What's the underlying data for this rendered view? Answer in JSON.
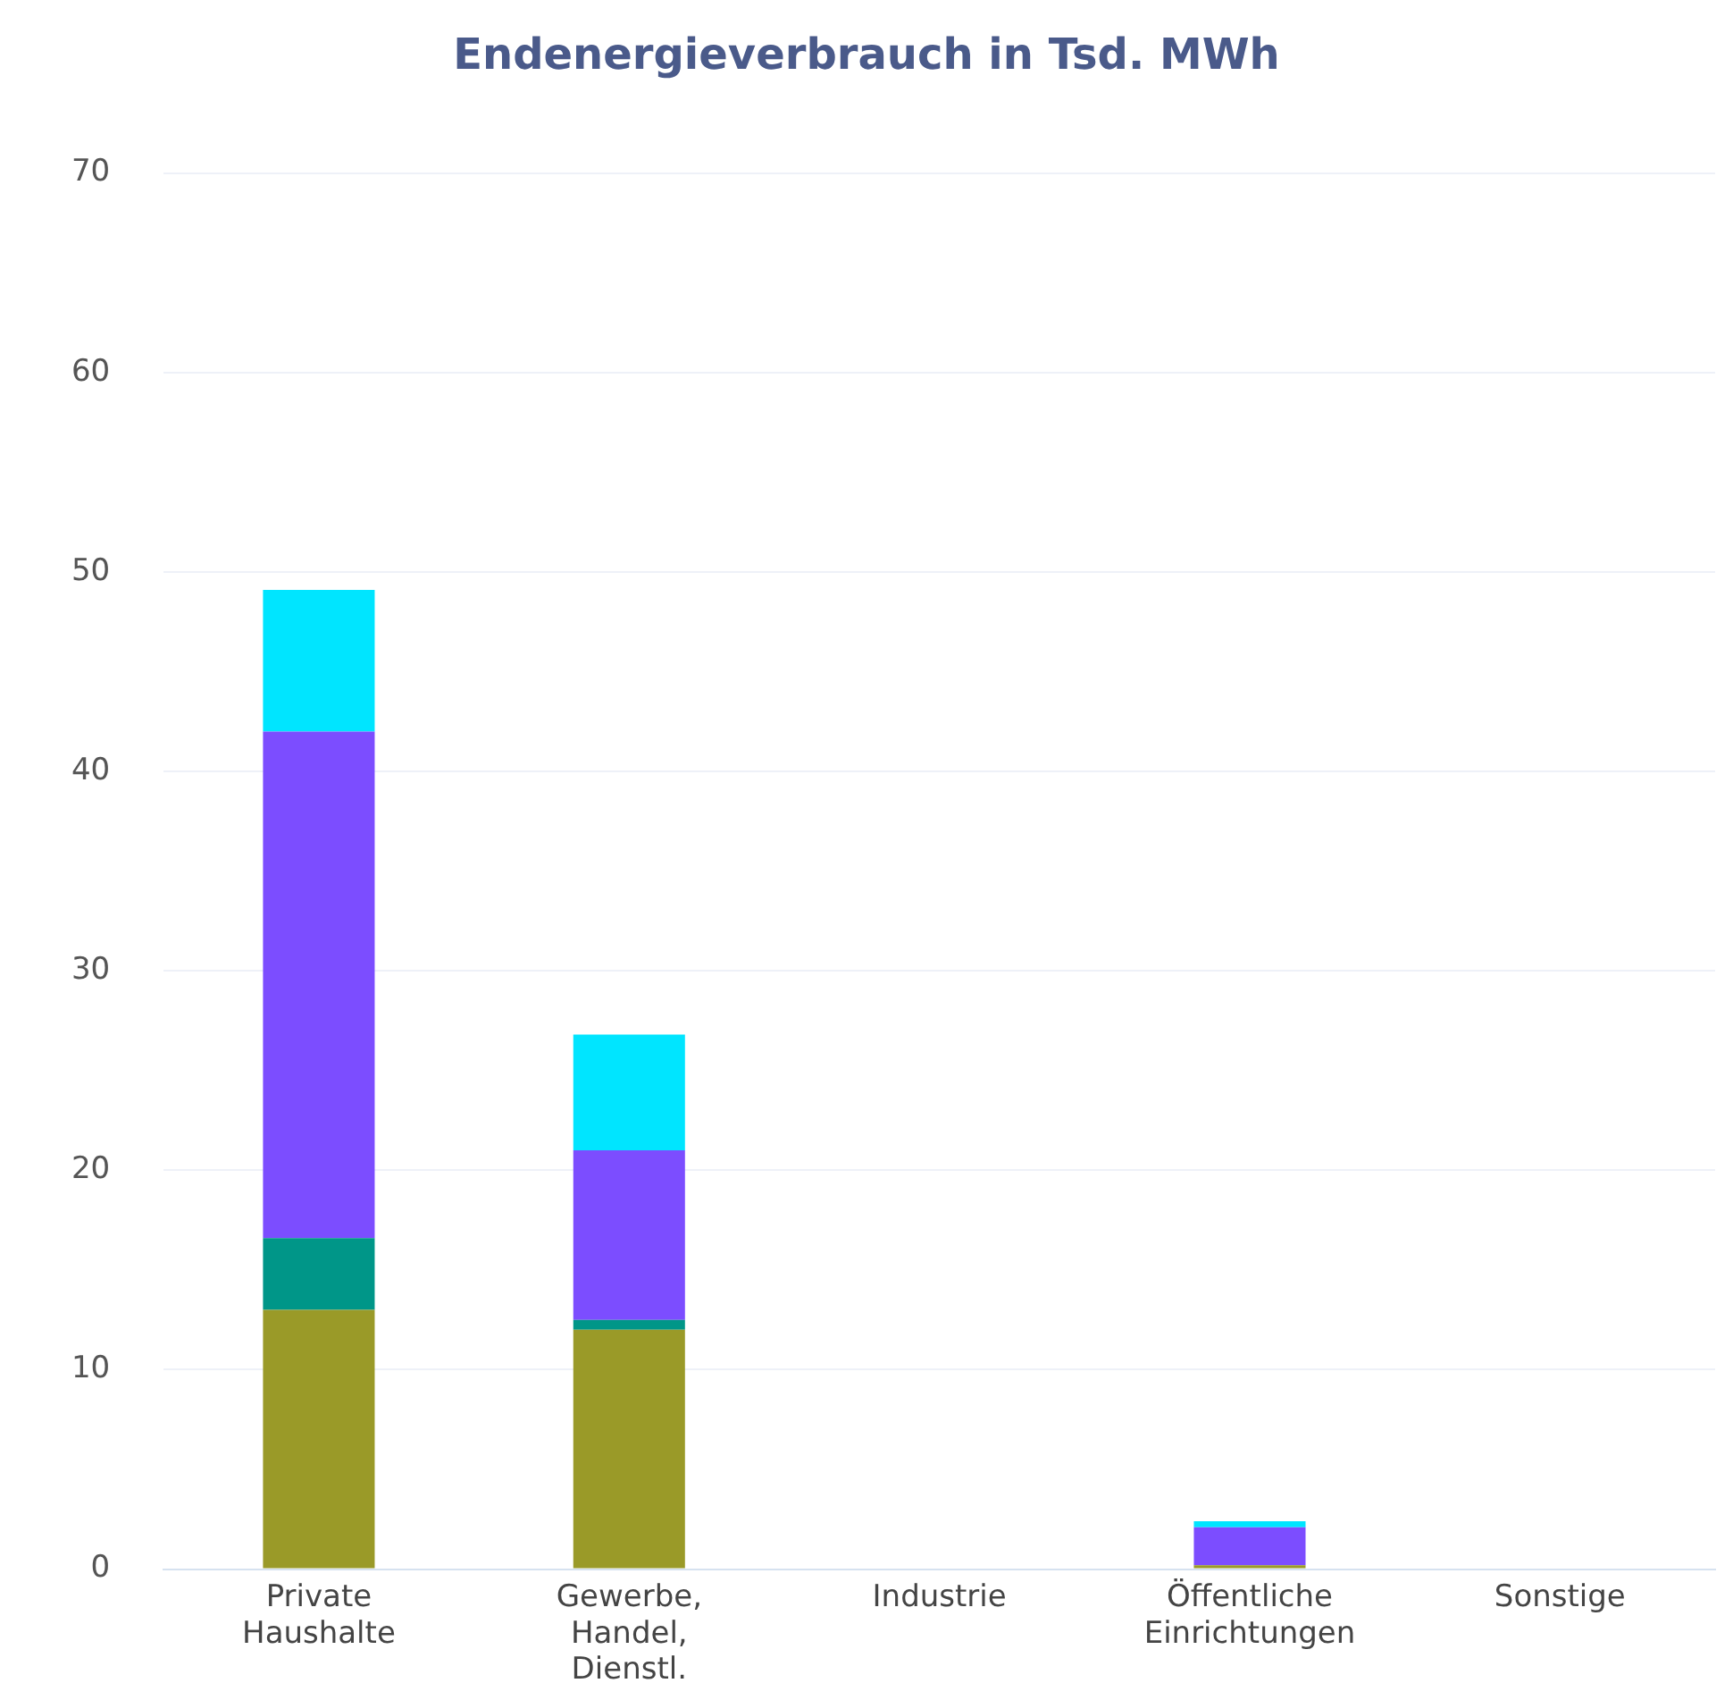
{
  "chart_data": {
    "type": "bar",
    "title": "Endenergieverbrauch in Tsd. MWh",
    "categories": [
      "Private Haushalte",
      "Gewerbe, Handel, Dienstl.",
      "Industrie",
      "Öffentliche Einrichtungen",
      "Sonstige"
    ],
    "stacked": true,
    "series": [
      {
        "color": "#9a9a28",
        "values": [
          13.0,
          12.0,
          0,
          0.2,
          0
        ]
      },
      {
        "color": "#009688",
        "values": [
          3.6,
          0.5,
          0,
          0,
          0
        ]
      },
      {
        "color": "#7c4dff",
        "values": [
          25.4,
          8.5,
          0,
          1.9,
          0
        ]
      },
      {
        "color": "#00e5ff",
        "values": [
          7.1,
          5.8,
          0,
          0.3,
          0
        ]
      }
    ],
    "ylim": [
      0,
      70
    ],
    "yticks": [
      0,
      10,
      20,
      30,
      40,
      50,
      60,
      70
    ],
    "grid": "y",
    "legend": false
  }
}
